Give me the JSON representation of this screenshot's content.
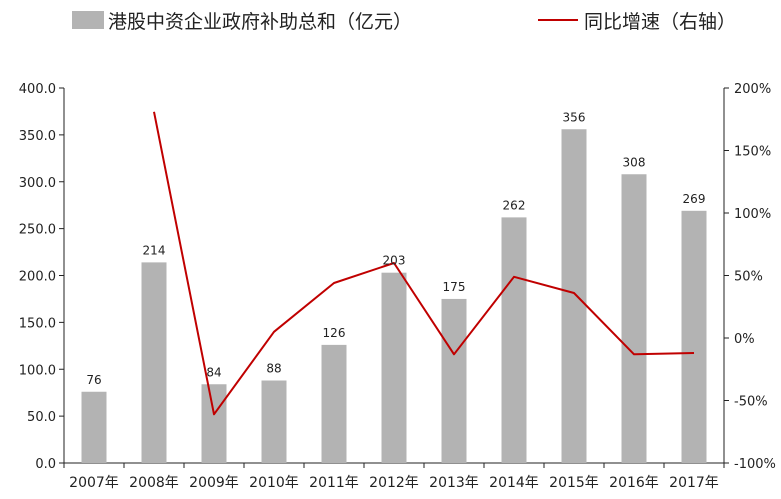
{
  "chart_data": {
    "type": "bar",
    "categories": [
      "2007年",
      "2008年",
      "2009年",
      "2010年",
      "2011年",
      "2012年",
      "2013年",
      "2014年",
      "2015年",
      "2016年",
      "2017年"
    ],
    "series": [
      {
        "name": "港股中资企业政府补助总和（亿元）",
        "type": "bar",
        "axis": "left",
        "color": "#b3b3b3",
        "values": [
          76,
          214,
          84,
          88,
          126,
          203,
          175,
          262,
          356,
          308,
          269
        ],
        "labels": [
          "76",
          "214",
          "84",
          "88",
          "126",
          "203",
          "175",
          "262",
          "356",
          "308",
          "269"
        ]
      },
      {
        "name": "同比增速（右轴）",
        "type": "line",
        "axis": "right",
        "color": "#c00000",
        "values": [
          null,
          181,
          -61,
          5,
          44,
          60,
          -13,
          49,
          36,
          -13,
          -12
        ]
      }
    ],
    "y_left": {
      "ylim": [
        0,
        400
      ],
      "ticks": [
        "0.0",
        "50.0",
        "100.0",
        "150.0",
        "200.0",
        "250.0",
        "300.0",
        "350.0",
        "400.0"
      ]
    },
    "y_right": {
      "ylim": [
        -100,
        200
      ],
      "ticks": [
        "-100%",
        "-50%",
        "0%",
        "50%",
        "100%",
        "150%",
        "200%"
      ]
    },
    "legend_position": "top",
    "grid": false
  }
}
